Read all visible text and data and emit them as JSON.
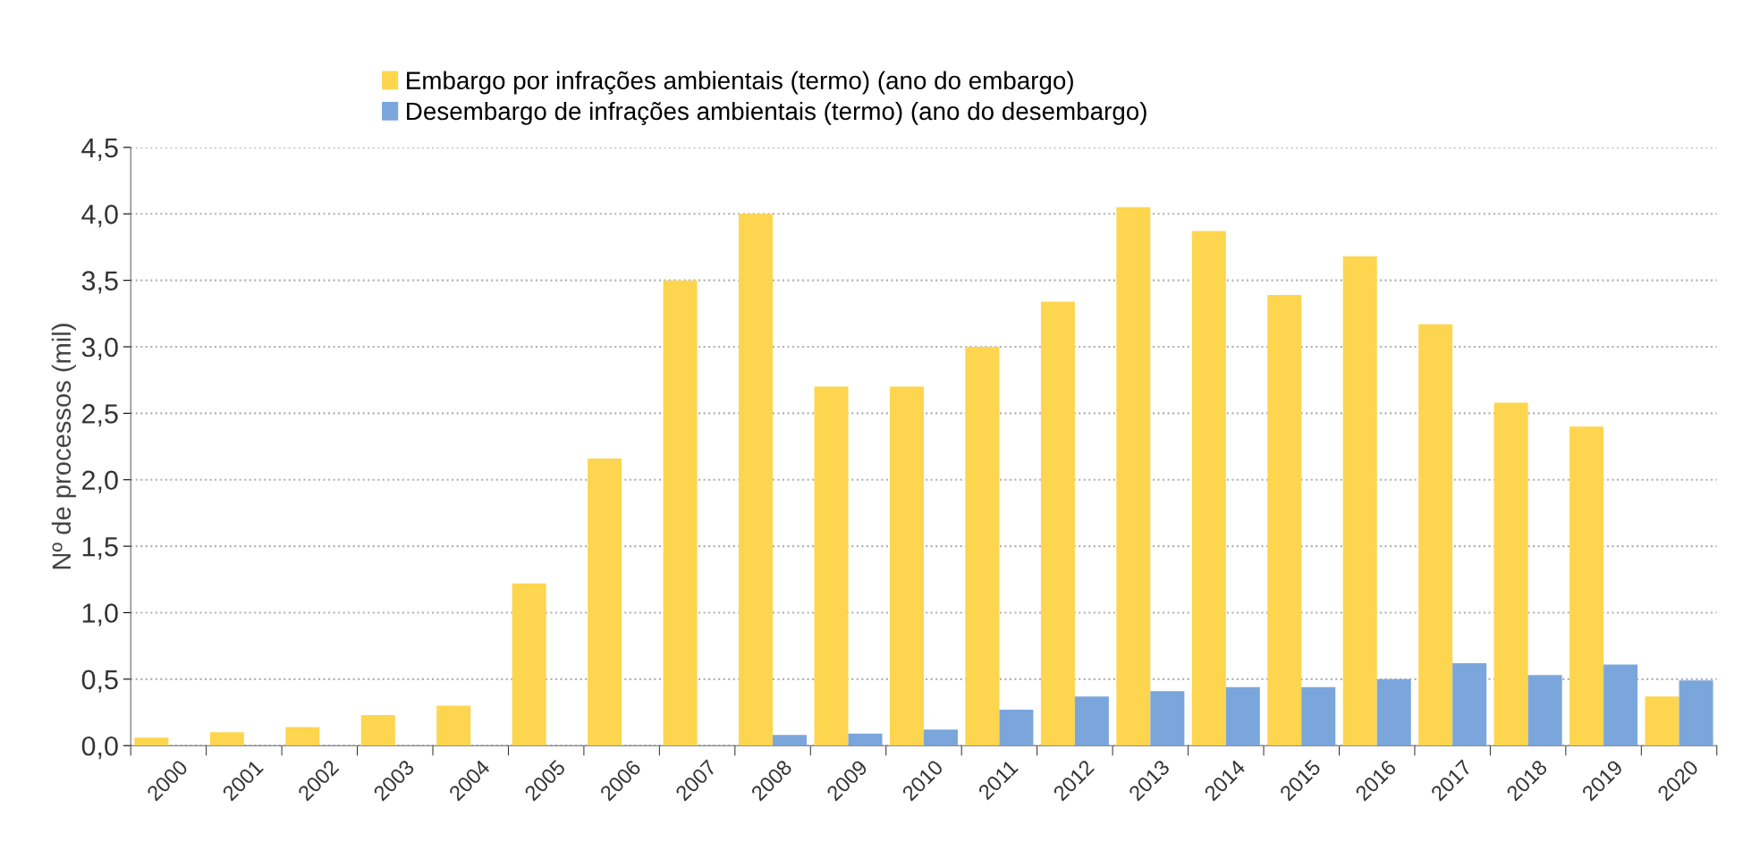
{
  "chart_data": {
    "type": "bar",
    "ylabel": "Nº de processos (mil)",
    "categories": [
      "2000",
      "2001",
      "2002",
      "2003",
      "2004",
      "2005",
      "2006",
      "2007",
      "2008",
      "2009",
      "2010",
      "2011",
      "2012",
      "2013",
      "2014",
      "2015",
      "2016",
      "2017",
      "2018",
      "2019",
      "2020"
    ],
    "series": [
      {
        "name": "Embargo por infrações ambientais (termo) (ano do embargo)",
        "color": "#fdd54f",
        "values": [
          0.06,
          0.1,
          0.14,
          0.23,
          0.3,
          1.22,
          2.16,
          3.5,
          4.0,
          2.7,
          2.7,
          3.0,
          3.34,
          4.05,
          3.87,
          3.39,
          3.68,
          3.17,
          2.58,
          2.4,
          0.37
        ]
      },
      {
        "name": "Desembargo de infrações ambientais (termo) (ano do desembargo)",
        "color": "#7aa6dc",
        "values": [
          0,
          0,
          0,
          0,
          0,
          0,
          0,
          0,
          0.08,
          0.09,
          0.12,
          0.27,
          0.37,
          0.41,
          0.44,
          0.44,
          0.5,
          0.62,
          0.53,
          0.61,
          0.49
        ]
      }
    ],
    "ylim": [
      0,
      4.5
    ],
    "yticks": [
      {
        "value": 0,
        "label": "0,0"
      },
      {
        "value": 0.5,
        "label": "0,5"
      },
      {
        "value": 1,
        "label": "1,0"
      },
      {
        "value": 1.5,
        "label": "1,5"
      },
      {
        "value": 2,
        "label": "2,0"
      },
      {
        "value": 2.5,
        "label": "2,5"
      },
      {
        "value": 3,
        "label": "3,0"
      },
      {
        "value": 3.5,
        "label": "3,5"
      },
      {
        "value": 4,
        "label": "4,0"
      },
      {
        "value": 4.5,
        "label": "4,5"
      }
    ],
    "grid": "y",
    "legend": "top"
  }
}
